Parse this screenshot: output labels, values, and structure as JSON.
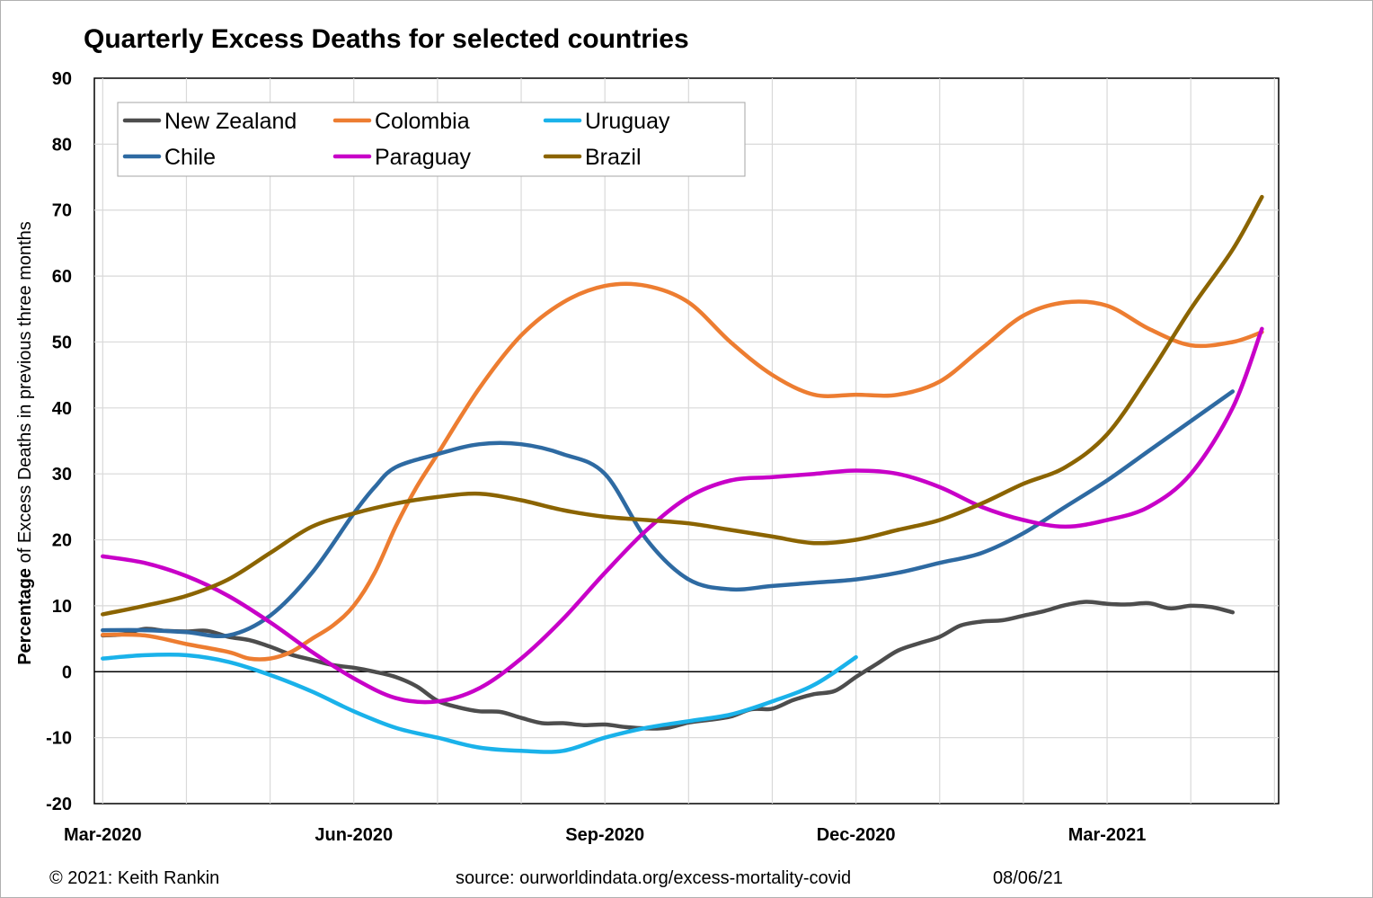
{
  "chart_data": {
    "type": "line",
    "title": "Quarterly Excess Deaths for selected countries",
    "ylabel_bold": "Percentage",
    "ylabel_rest": " of Excess Deaths in previous three months",
    "xlabel": "",
    "ylim": [
      -20,
      90
    ],
    "yticks": [
      -20,
      -10,
      0,
      10,
      20,
      30,
      40,
      50,
      60,
      70,
      80,
      90
    ],
    "xlim": [
      -0.1,
      14.05
    ],
    "xticks": [
      {
        "label": "Mar-2020",
        "x": 0
      },
      {
        "label": "Jun-2020",
        "x": 3
      },
      {
        "label": "Sep-2020",
        "x": 6
      },
      {
        "label": "Dec-2020",
        "x": 9
      },
      {
        "label": "Mar-2021",
        "x": 12
      }
    ],
    "grid": true,
    "legend_position": "top-left",
    "x_unit": "months since Mar-2020",
    "series": [
      {
        "name": "New Zealand",
        "color": "#4d4d4d",
        "x": [
          0,
          0.25,
          0.5,
          0.75,
          1,
          1.25,
          1.5,
          1.75,
          2,
          2.25,
          2.5,
          2.75,
          3,
          3.25,
          3.5,
          3.75,
          4,
          4.25,
          4.5,
          4.75,
          5,
          5.25,
          5.5,
          5.75,
          6,
          6.25,
          6.5,
          6.75,
          7,
          7.25,
          7.5,
          7.75,
          8,
          8.25,
          8.5,
          8.75,
          9,
          9.25,
          9.5,
          9.75,
          10,
          10.25,
          10.5,
          10.75,
          11,
          11.25,
          11.5,
          11.75,
          12,
          12.25,
          12.5,
          12.75,
          13,
          13.25,
          13.5
        ],
        "values": [
          5.5,
          5.7,
          6.5,
          6.2,
          6.1,
          6.2,
          5.3,
          4.8,
          3.8,
          2.6,
          1.8,
          1.0,
          0.6,
          0,
          -0.8,
          -2.2,
          -4.4,
          -5.4,
          -6.0,
          -6.1,
          -7.0,
          -7.8,
          -7.8,
          -8.1,
          -8.0,
          -8.4,
          -8.6,
          -8.5,
          -7.7,
          -7.3,
          -6.8,
          -5.7,
          -5.6,
          -4.3,
          -3.4,
          -2.9,
          -0.8,
          1.2,
          3.2,
          4.3,
          5.3,
          7.0,
          7.6,
          7.8,
          8.5,
          9.2,
          10.1,
          10.6,
          10.3,
          10.2,
          10.4,
          9.6,
          10.0,
          9.8,
          9.0
        ]
      },
      {
        "name": "Colombia",
        "color": "#ed7d31",
        "x": [
          0,
          0.5,
          1,
          1.5,
          1.75,
          2,
          2.25,
          2.5,
          2.75,
          3,
          3.25,
          3.5,
          3.75,
          4,
          4.5,
          5,
          5.5,
          6,
          6.5,
          7,
          7.5,
          8,
          8.5,
          9,
          9.5,
          10,
          10.5,
          11,
          11.5,
          12,
          12.5,
          13,
          13.5,
          13.85
        ],
        "values": [
          5.6,
          5.5,
          4.2,
          3.0,
          2.0,
          2.0,
          3.0,
          5.0,
          7.0,
          10.0,
          15.0,
          22.0,
          28.0,
          33.0,
          43.0,
          51.0,
          56.0,
          58.5,
          58.5,
          56.0,
          50.0,
          45.0,
          42.0,
          42.0,
          42.0,
          44.0,
          49.0,
          54.0,
          56.0,
          55.5,
          52.0,
          49.5,
          50.0,
          51.5
        ]
      },
      {
        "name": "Uruguay",
        "color": "#1ab2ea",
        "x": [
          0,
          0.5,
          1,
          1.5,
          2,
          2.5,
          3,
          3.5,
          4,
          4.5,
          5,
          5.5,
          6,
          6.5,
          7,
          7.5,
          8,
          8.5,
          9
        ],
        "values": [
          2.0,
          2.5,
          2.5,
          1.5,
          -0.5,
          -3.0,
          -6.0,
          -8.5,
          -10.0,
          -11.5,
          -12.0,
          -12.0,
          -10.0,
          -8.5,
          -7.5,
          -6.5,
          -4.5,
          -2.0,
          2.2
        ]
      },
      {
        "name": "Chile",
        "color": "#2e6aa2",
        "x": [
          0,
          0.5,
          1,
          1.5,
          2,
          2.5,
          3,
          3.25,
          3.5,
          4,
          4.5,
          5,
          5.5,
          6,
          6.5,
          7,
          7.5,
          8,
          8.5,
          9,
          9.5,
          10,
          10.5,
          11,
          11.5,
          12,
          12.5,
          13,
          13.5
        ],
        "values": [
          6.3,
          6.3,
          6.0,
          5.5,
          8.5,
          15.0,
          24.0,
          28.0,
          31.0,
          33.0,
          34.5,
          34.5,
          33.0,
          30.0,
          20.0,
          14.0,
          12.5,
          13.0,
          13.5,
          14.0,
          15.0,
          16.5,
          18.0,
          21.0,
          25.0,
          29.0,
          33.5,
          38.0,
          42.5
        ]
      },
      {
        "name": "Paraguay",
        "color": "#c800c8",
        "x": [
          0,
          0.5,
          1,
          1.5,
          2,
          2.5,
          3,
          3.5,
          4,
          4.5,
          5,
          5.5,
          6,
          6.5,
          7,
          7.5,
          8,
          8.5,
          9,
          9.5,
          10,
          10.5,
          11,
          11.5,
          12,
          12.5,
          13,
          13.5,
          13.85
        ],
        "values": [
          17.5,
          16.5,
          14.5,
          11.5,
          7.5,
          3.0,
          -1.0,
          -4.0,
          -4.5,
          -2.5,
          2.0,
          8.0,
          15.0,
          21.5,
          26.5,
          29.0,
          29.5,
          30.0,
          30.5,
          30.0,
          28.0,
          25.0,
          23.0,
          22.0,
          23.0,
          25.0,
          30.0,
          40.0,
          52.0
        ]
      },
      {
        "name": "Brazil",
        "color": "#8b6400",
        "x": [
          0,
          0.5,
          1,
          1.5,
          2,
          2.5,
          3,
          3.5,
          4,
          4.5,
          5,
          5.5,
          6,
          6.5,
          7,
          7.5,
          8,
          8.5,
          9,
          9.5,
          10,
          10.5,
          11,
          11.5,
          12,
          12.5,
          13,
          13.5,
          13.85
        ],
        "values": [
          8.7,
          10.0,
          11.5,
          14.0,
          18.0,
          22.0,
          24.0,
          25.5,
          26.5,
          27.0,
          26.0,
          24.5,
          23.5,
          23.0,
          22.5,
          21.5,
          20.5,
          19.5,
          20.0,
          21.5,
          23.0,
          25.5,
          28.5,
          31.0,
          36.0,
          45.0,
          55.0,
          64.0,
          72.0
        ]
      }
    ]
  },
  "footer": {
    "copyright": "© 2021: Keith Rankin",
    "source": "source: ourworldindata.org/excess-mortality-covid",
    "date": "08/06/21"
  }
}
